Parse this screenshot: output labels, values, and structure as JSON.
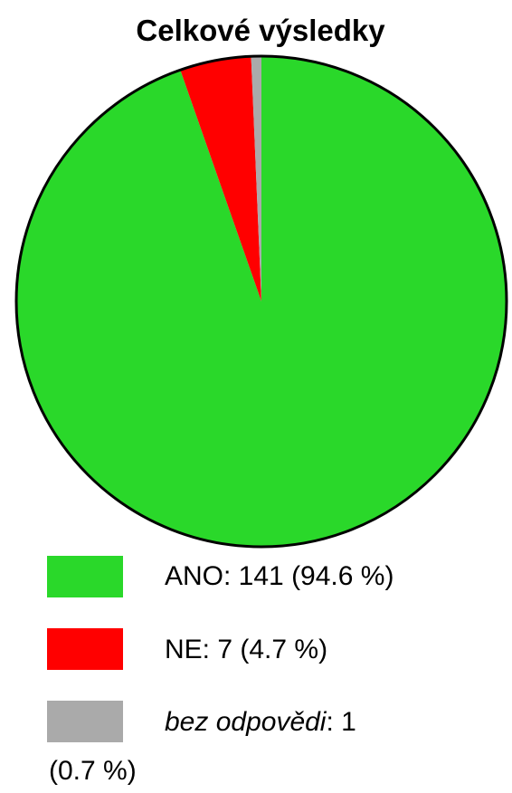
{
  "chart_data": {
    "type": "pie",
    "title": "Celkové výsledky",
    "slices": [
      {
        "label": "ANO",
        "value": 141,
        "percent": "94.6 %",
        "color": "#2ad82a"
      },
      {
        "label": "NE",
        "value": 7,
        "percent": "4.7 %",
        "color": "#ff0000"
      },
      {
        "label": "bez odpovědi",
        "value": 1,
        "percent": "0.7 %",
        "color": "#aaaaaa"
      }
    ],
    "legend": {
      "placement": "bottom",
      "entries": [
        {
          "main": "ANO: 141 (94.6 %)"
        },
        {
          "main": "NE: 7 (4.7 %)"
        },
        {
          "label": "bez odpovědi",
          "suffix": ": 1",
          "wrap": "(0.7 %)"
        }
      ]
    }
  }
}
